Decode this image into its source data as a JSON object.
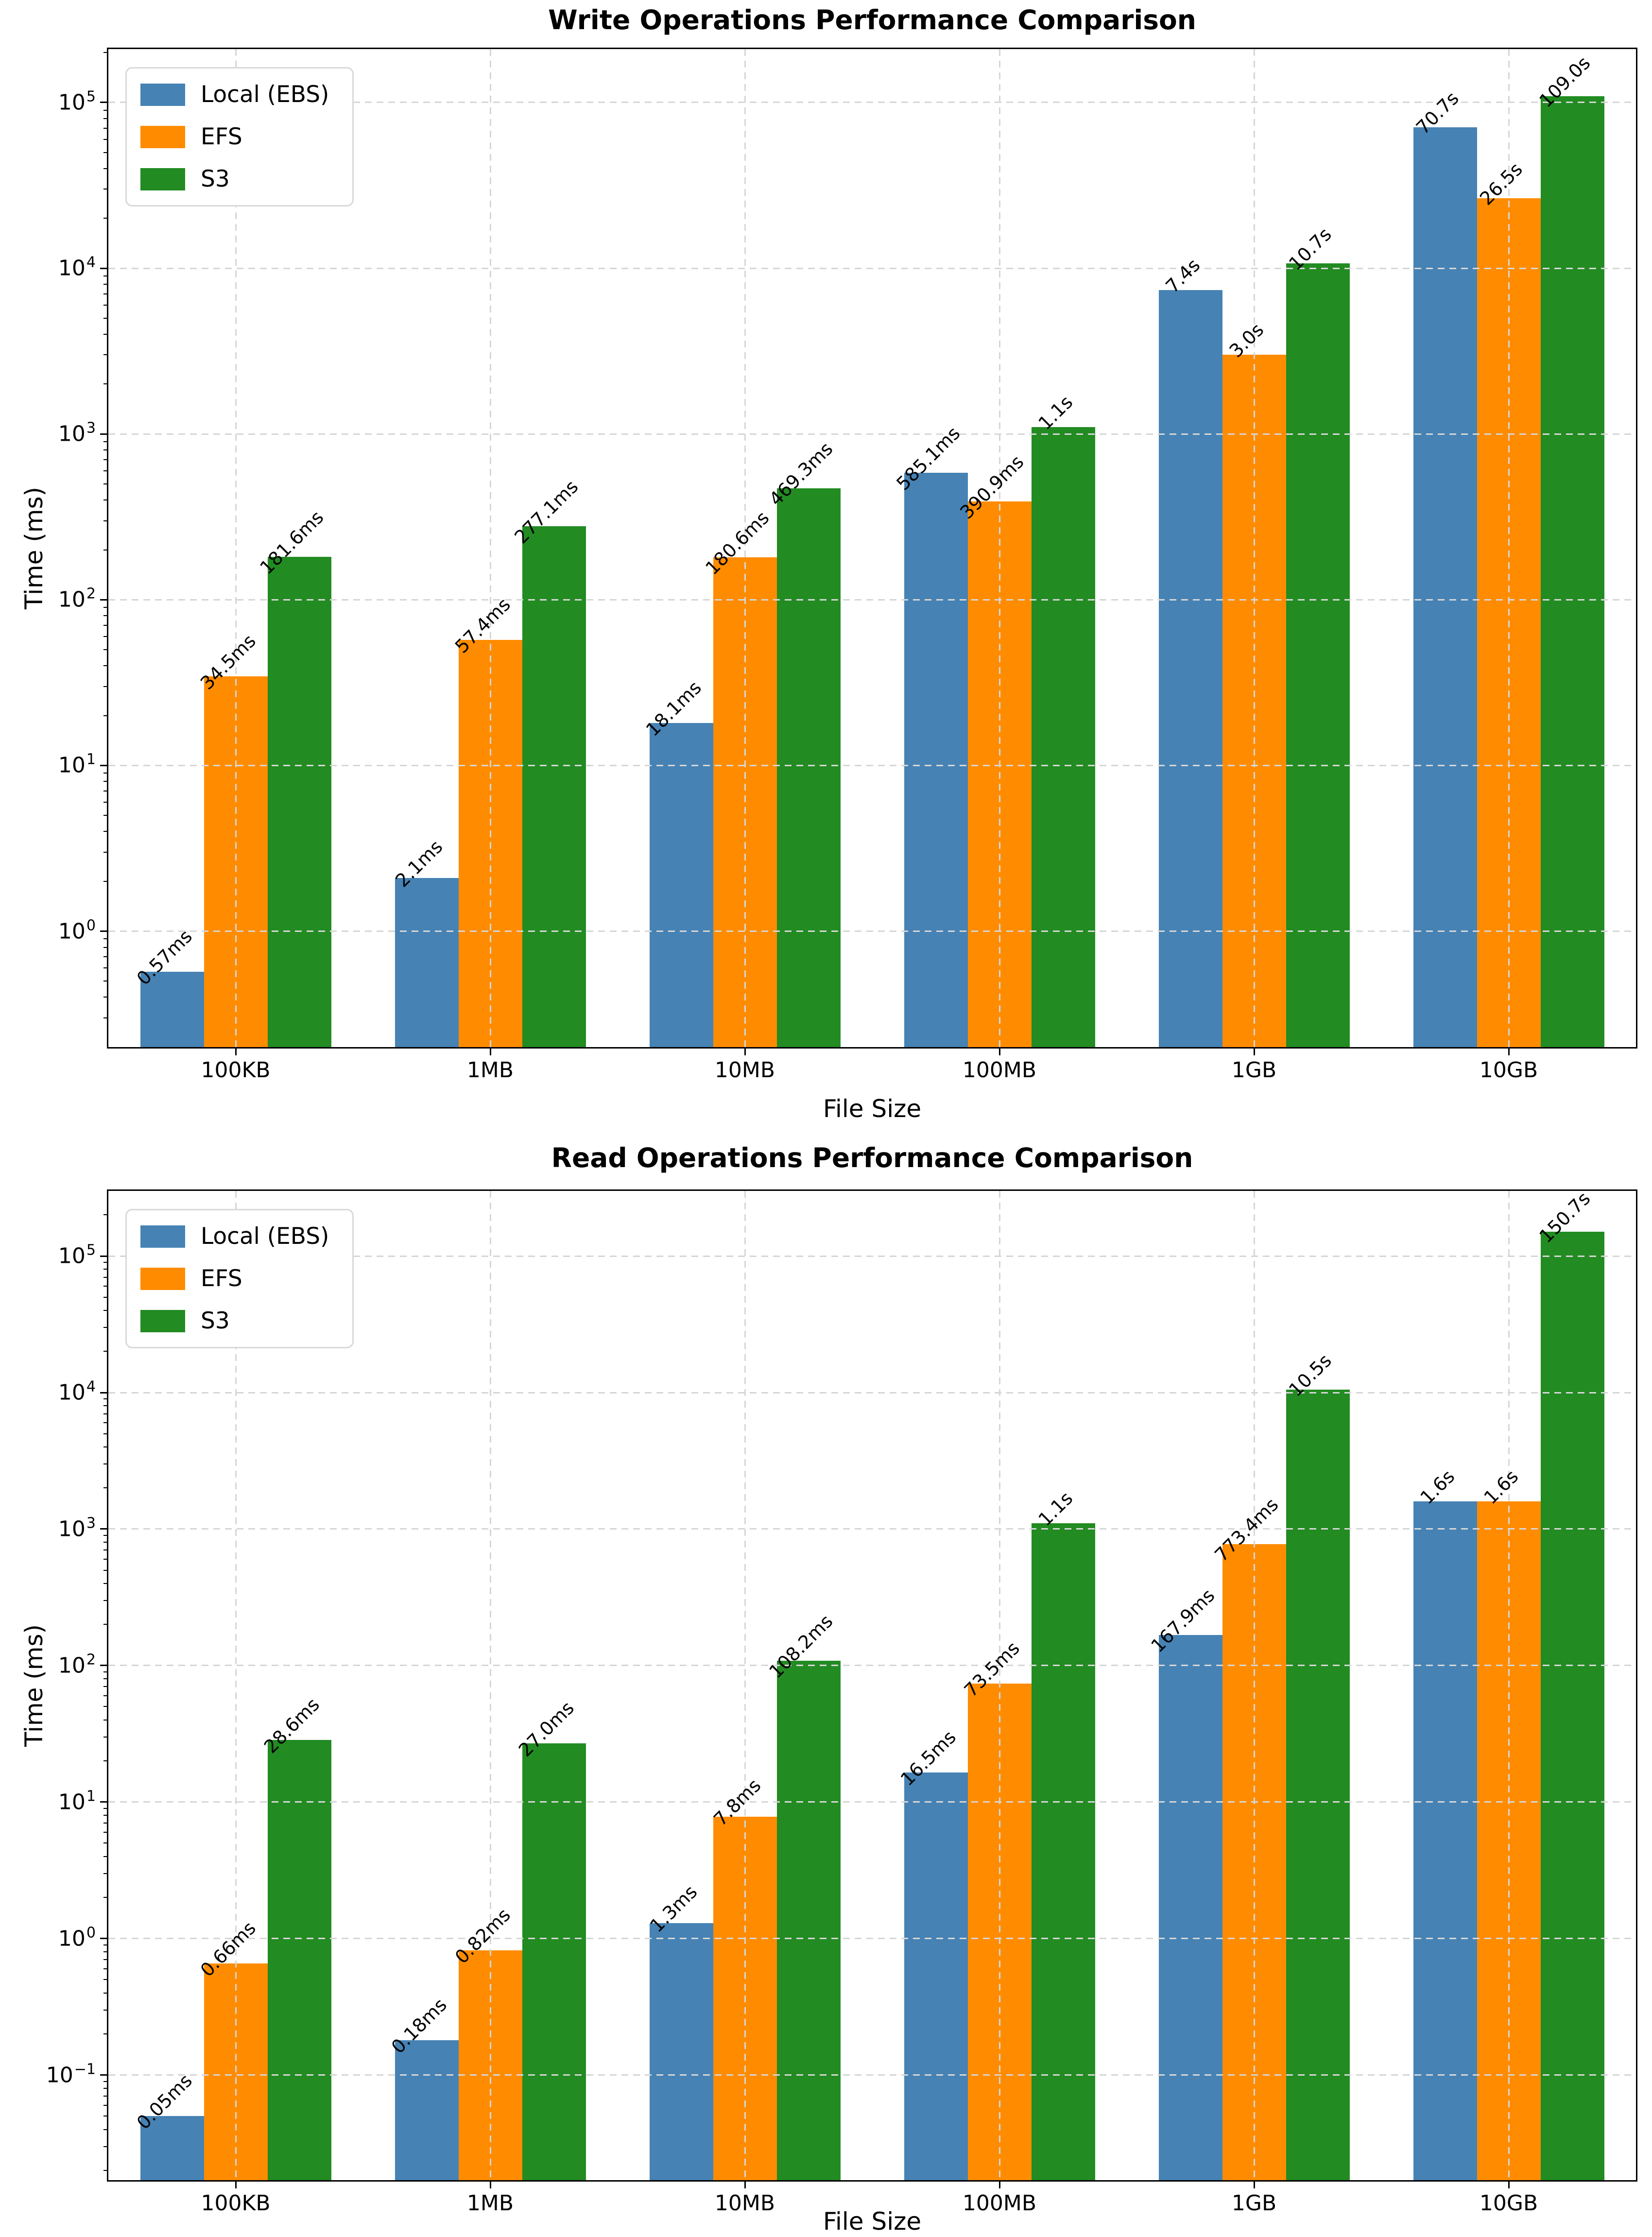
{
  "chart_data": [
    {
      "type": "bar",
      "title": "Write Operations Performance Comparison",
      "xlabel": "File Size",
      "ylabel": "Time (ms)",
      "yscale": "log",
      "ylim_ms": [
        0.2,
        210000
      ],
      "grid": "dashed",
      "legend_loc": "upper left",
      "categories": [
        "100KB",
        "1MB",
        "10MB",
        "100MB",
        "1GB",
        "10GB"
      ],
      "y_ticks": [
        {
          "base": "10",
          "exp": 0,
          "exp_text": "0"
        },
        {
          "base": "10",
          "exp": 1,
          "exp_text": "1"
        },
        {
          "base": "10",
          "exp": 2,
          "exp_text": "2"
        },
        {
          "base": "10",
          "exp": 3,
          "exp_text": "3"
        },
        {
          "base": "10",
          "exp": 4,
          "exp_text": "4"
        },
        {
          "base": "10",
          "exp": 5,
          "exp_text": "5"
        }
      ],
      "series": [
        {
          "name": "Local (EBS)",
          "color": "#4682b4",
          "values_ms": [
            0.57,
            2.1,
            18.1,
            585.1,
            7400,
            70700
          ],
          "labels": [
            "0.57ms",
            "2.1ms",
            "18.1ms",
            "585.1ms",
            "7.4s",
            "70.7s"
          ]
        },
        {
          "name": "EFS",
          "color": "#ff8c00",
          "values_ms": [
            34.5,
            57.4,
            180.6,
            390.9,
            3000,
            26500
          ],
          "labels": [
            "34.5ms",
            "57.4ms",
            "180.6ms",
            "390.9ms",
            "3.0s",
            "26.5s"
          ]
        },
        {
          "name": "S3",
          "color": "#228b22",
          "values_ms": [
            181.6,
            277.1,
            469.3,
            1100,
            10700,
            109000
          ],
          "labels": [
            "181.6ms",
            "277.1ms",
            "469.3ms",
            "1.1s",
            "10.7s",
            "109.0s"
          ]
        }
      ]
    },
    {
      "type": "bar",
      "title": "Read Operations Performance Comparison",
      "xlabel": "File Size",
      "ylabel": "Time (ms)",
      "yscale": "log",
      "ylim_ms": [
        0.017,
        300000
      ],
      "grid": "dashed",
      "legend_loc": "upper left",
      "categories": [
        "100KB",
        "1MB",
        "10MB",
        "100MB",
        "1GB",
        "10GB"
      ],
      "y_ticks": [
        {
          "base": "10",
          "exp": -1,
          "exp_text": "−1"
        },
        {
          "base": "10",
          "exp": 0,
          "exp_text": "0"
        },
        {
          "base": "10",
          "exp": 1,
          "exp_text": "1"
        },
        {
          "base": "10",
          "exp": 2,
          "exp_text": "2"
        },
        {
          "base": "10",
          "exp": 3,
          "exp_text": "3"
        },
        {
          "base": "10",
          "exp": 4,
          "exp_text": "4"
        },
        {
          "base": "10",
          "exp": 5,
          "exp_text": "5"
        }
      ],
      "series": [
        {
          "name": "Local (EBS)",
          "color": "#4682b4",
          "values_ms": [
            0.05,
            0.18,
            1.3,
            16.5,
            167.9,
            1600
          ],
          "labels": [
            "0.05ms",
            "0.18ms",
            "1.3ms",
            "16.5ms",
            "167.9ms",
            "1.6s"
          ]
        },
        {
          "name": "EFS",
          "color": "#ff8c00",
          "values_ms": [
            0.66,
            0.82,
            7.8,
            73.5,
            773.4,
            1600
          ],
          "labels": [
            "0.66ms",
            "0.82ms",
            "7.8ms",
            "73.5ms",
            "773.4ms",
            "1.6s"
          ]
        },
        {
          "name": "S3",
          "color": "#228b22",
          "values_ms": [
            28.6,
            27.0,
            108.2,
            1100,
            10500,
            150700
          ],
          "labels": [
            "28.6ms",
            "27.0ms",
            "108.2ms",
            "1.1s",
            "10.5s",
            "150.7s"
          ]
        }
      ]
    }
  ]
}
